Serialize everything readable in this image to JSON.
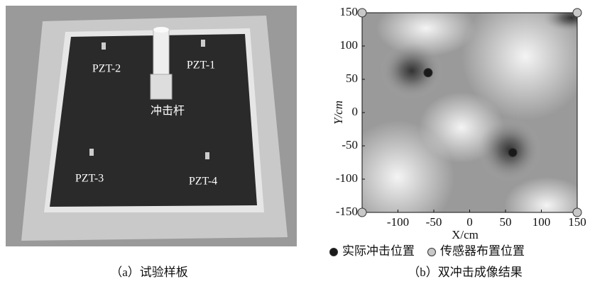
{
  "photo": {
    "labels": [
      "PZT-2",
      "PZT-1",
      "冲击杆",
      "PZT-3",
      "PZT-4"
    ]
  },
  "captions": [
    "（a）试验样板",
    "（b）双冲击成像结果"
  ],
  "chart_data": {
    "type": "scatter",
    "xlabel": "X/cm",
    "ylabel": "Y/cm",
    "xlim": [
      -150,
      150
    ],
    "ylim": [
      -150,
      150
    ],
    "xticks": [
      -100,
      -50,
      0,
      50,
      100,
      150
    ],
    "yticks": [
      -150,
      -100,
      -50,
      0,
      50,
      100,
      150
    ],
    "series": [
      {
        "name": "实际冲击位置",
        "color": "#1a1a1a",
        "x": [
          -58,
          60
        ],
        "y": [
          60,
          -60
        ]
      },
      {
        "name": "传感器布置位置",
        "color": "#c8c8c8",
        "x": [
          -150,
          150,
          -150,
          150
        ],
        "y": [
          150,
          150,
          -150,
          -150
        ]
      }
    ]
  }
}
